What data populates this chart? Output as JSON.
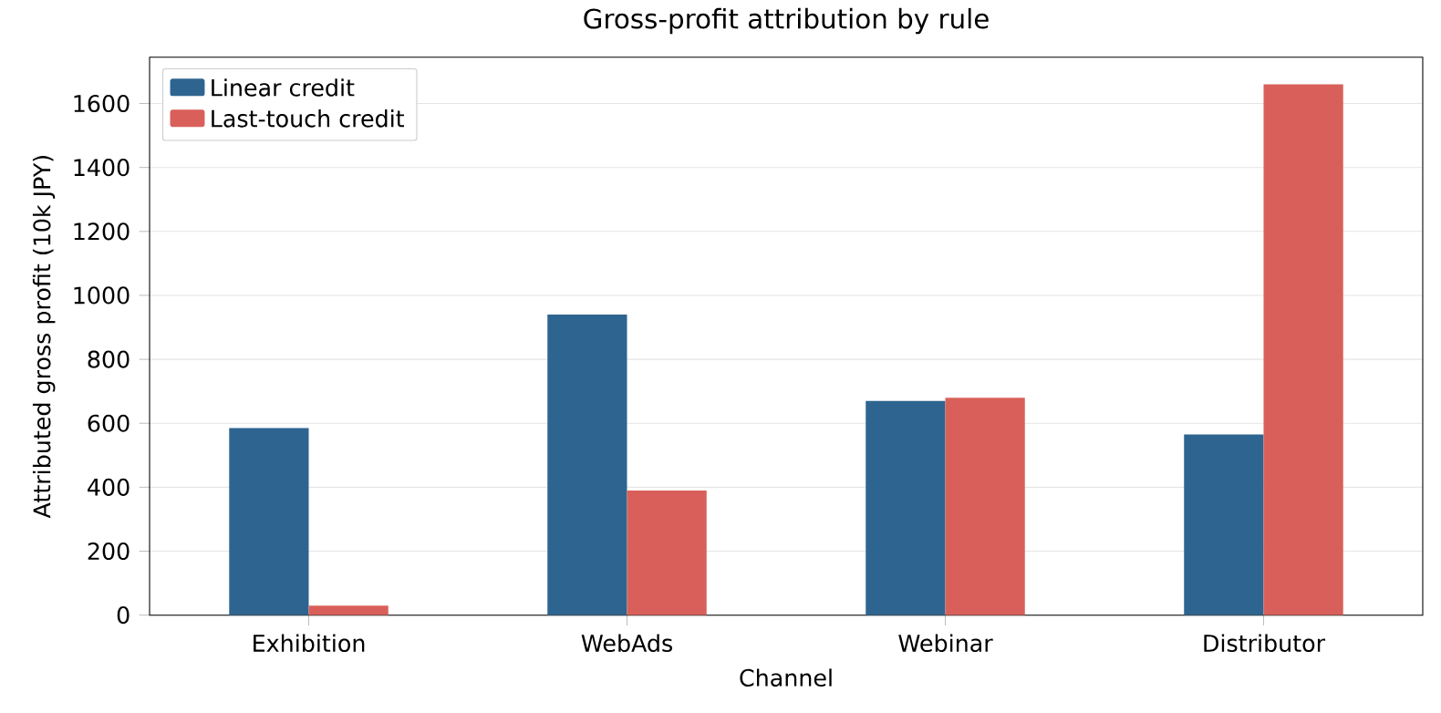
{
  "chart_data": {
    "type": "bar",
    "title": "Gross-profit attribution by rule",
    "xlabel": "Channel",
    "ylabel": "Attributed gross profit (10k JPY)",
    "categories": [
      "Exhibition",
      "WebAds",
      "Webinar",
      "Distributor"
    ],
    "series": [
      {
        "name": "Linear credit",
        "color": "#2e6590",
        "values": [
          585,
          940,
          670,
          565
        ]
      },
      {
        "name": "Last-touch credit",
        "color": "#d9605a",
        "values": [
          30,
          390,
          680,
          1660
        ]
      }
    ],
    "ylim": [
      0,
      1745
    ],
    "yticks": [
      0,
      200,
      400,
      600,
      800,
      1000,
      1200,
      1400,
      1600
    ],
    "grid": "y",
    "legend": "top left"
  }
}
